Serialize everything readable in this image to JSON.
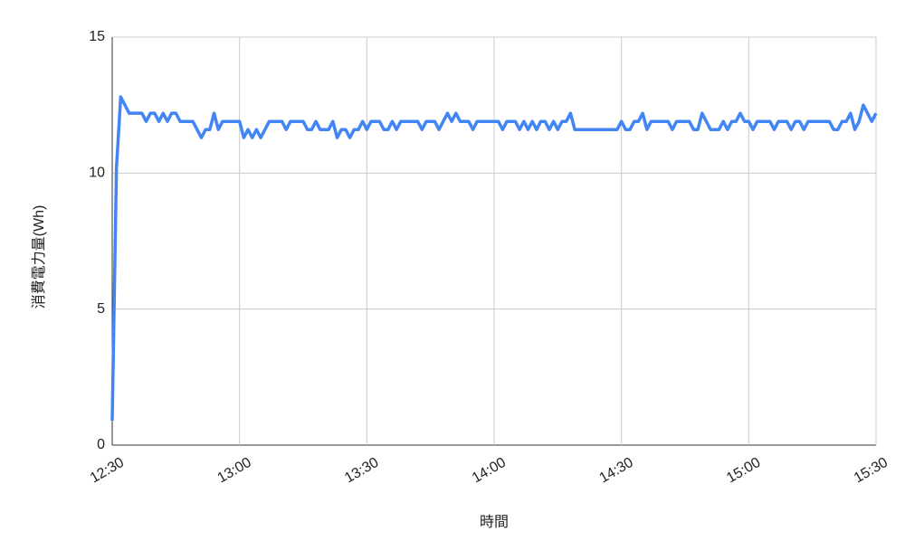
{
  "chart_data": {
    "type": "line",
    "ylabel": "消費電力量(Wh)",
    "xlabel": "時間",
    "x": [
      "12:30",
      "12:31",
      "12:32",
      "12:33",
      "12:34",
      "12:35",
      "12:36",
      "12:37",
      "12:38",
      "12:39",
      "12:40",
      "12:41",
      "12:42",
      "12:43",
      "12:44",
      "12:45",
      "12:46",
      "12:47",
      "12:48",
      "12:49",
      "12:50",
      "12:51",
      "12:52",
      "12:53",
      "12:54",
      "12:55",
      "12:56",
      "12:57",
      "12:58",
      "12:59",
      "13:00",
      "13:01",
      "13:02",
      "13:03",
      "13:04",
      "13:05",
      "13:06",
      "13:07",
      "13:08",
      "13:09",
      "13:10",
      "13:11",
      "13:12",
      "13:13",
      "13:14",
      "13:15",
      "13:16",
      "13:17",
      "13:18",
      "13:19",
      "13:20",
      "13:21",
      "13:22",
      "13:23",
      "13:24",
      "13:25",
      "13:26",
      "13:27",
      "13:28",
      "13:29",
      "13:30",
      "13:31",
      "13:32",
      "13:33",
      "13:34",
      "13:35",
      "13:36",
      "13:37",
      "13:38",
      "13:39",
      "13:40",
      "13:41",
      "13:42",
      "13:43",
      "13:44",
      "13:45",
      "13:46",
      "13:47",
      "13:48",
      "13:49",
      "13:50",
      "13:51",
      "13:52",
      "13:53",
      "13:54",
      "13:55",
      "13:56",
      "13:57",
      "13:58",
      "13:59",
      "14:00",
      "14:01",
      "14:02",
      "14:03",
      "14:04",
      "14:05",
      "14:06",
      "14:07",
      "14:08",
      "14:09",
      "14:10",
      "14:11",
      "14:12",
      "14:13",
      "14:14",
      "14:15",
      "14:16",
      "14:17",
      "14:18",
      "14:19",
      "14:20",
      "14:21",
      "14:22",
      "14:23",
      "14:24",
      "14:25",
      "14:26",
      "14:27",
      "14:28",
      "14:29",
      "14:30",
      "14:31",
      "14:32",
      "14:33",
      "14:34",
      "14:35",
      "14:36",
      "14:37",
      "14:38",
      "14:39",
      "14:40",
      "14:41",
      "14:42",
      "14:43",
      "14:44",
      "14:45",
      "14:46",
      "14:47",
      "14:48",
      "14:49",
      "14:50",
      "14:51",
      "14:52",
      "14:53",
      "14:54",
      "14:55",
      "14:56",
      "14:57",
      "14:58",
      "14:59",
      "15:00",
      "15:01",
      "15:02",
      "15:03",
      "15:04",
      "15:05",
      "15:06",
      "15:07",
      "15:08",
      "15:09",
      "15:10",
      "15:11",
      "15:12",
      "15:13",
      "15:14",
      "15:15",
      "15:16",
      "15:17",
      "15:18",
      "15:19",
      "15:20",
      "15:21",
      "15:22",
      "15:23",
      "15:24",
      "15:25",
      "15:26",
      "15:27",
      "15:28",
      "15:29",
      "15:30"
    ],
    "values": [
      0.9,
      10.2,
      12.8,
      12.5,
      12.2,
      12.2,
      12.2,
      12.2,
      11.9,
      12.2,
      12.2,
      11.9,
      12.2,
      11.9,
      12.2,
      12.2,
      11.9,
      11.9,
      11.9,
      11.9,
      11.6,
      11.3,
      11.6,
      11.6,
      12.2,
      11.6,
      11.9,
      11.9,
      11.9,
      11.9,
      11.9,
      11.3,
      11.6,
      11.3,
      11.6,
      11.3,
      11.6,
      11.9,
      11.9,
      11.9,
      11.9,
      11.6,
      11.9,
      11.9,
      11.9,
      11.9,
      11.6,
      11.6,
      11.9,
      11.6,
      11.6,
      11.6,
      11.9,
      11.3,
      11.6,
      11.6,
      11.3,
      11.6,
      11.6,
      11.9,
      11.6,
      11.9,
      11.9,
      11.9,
      11.6,
      11.6,
      11.9,
      11.6,
      11.9,
      11.9,
      11.9,
      11.9,
      11.9,
      11.6,
      11.9,
      11.9,
      11.9,
      11.6,
      11.9,
      12.2,
      11.9,
      12.2,
      11.9,
      11.9,
      11.9,
      11.6,
      11.9,
      11.9,
      11.9,
      11.9,
      11.9,
      11.9,
      11.6,
      11.9,
      11.9,
      11.9,
      11.6,
      11.9,
      11.6,
      11.9,
      11.6,
      11.9,
      11.9,
      11.6,
      11.9,
      11.6,
      11.9,
      11.9,
      12.2,
      11.6,
      11.6,
      11.6,
      11.6,
      11.6,
      11.6,
      11.6,
      11.6,
      11.6,
      11.6,
      11.6,
      11.9,
      11.6,
      11.6,
      11.9,
      11.9,
      12.2,
      11.6,
      11.9,
      11.9,
      11.9,
      11.9,
      11.9,
      11.6,
      11.9,
      11.9,
      11.9,
      11.9,
      11.6,
      11.6,
      12.2,
      11.9,
      11.6,
      11.6,
      11.6,
      11.9,
      11.6,
      11.9,
      11.9,
      12.2,
      11.9,
      11.9,
      11.6,
      11.9,
      11.9,
      11.9,
      11.9,
      11.6,
      11.9,
      11.9,
      11.9,
      11.6,
      11.9,
      11.9,
      11.6,
      11.9,
      11.9,
      11.9,
      11.9,
      11.9,
      11.9,
      11.6,
      11.6,
      11.9,
      11.9,
      12.2,
      11.6,
      11.9,
      12.5,
      12.2,
      11.9,
      12.2
    ],
    "color": "#4285f4",
    "xlim": [
      "12:30",
      "15:30"
    ],
    "xticks": [
      "12:30",
      "13:00",
      "13:30",
      "14:00",
      "14:30",
      "15:00",
      "15:30"
    ],
    "ylim": [
      0,
      15
    ],
    "yticks": [
      0,
      5,
      10,
      15
    ],
    "grid": true
  }
}
